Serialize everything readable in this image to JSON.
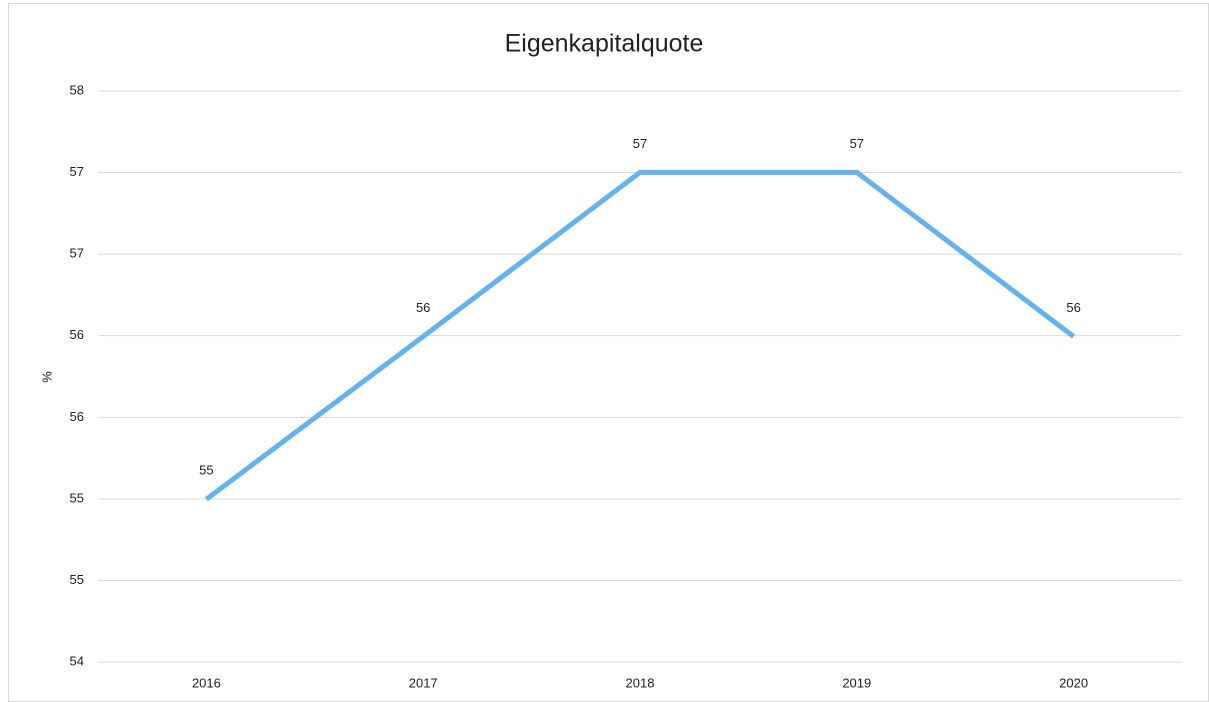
{
  "chart_data": {
    "type": "line",
    "title": "Eigenkapitalquote",
    "y_label": "%",
    "categories": [
      "2016",
      "2017",
      "2018",
      "2019",
      "2020"
    ],
    "series": [
      {
        "name": "Eigenkapitalquote",
        "color": "#64b2ee",
        "values": [
          55.14,
          56.28,
          57.43,
          57.43,
          56.28
        ],
        "value_labels": [
          "55",
          "56",
          "57",
          "57",
          "56"
        ]
      }
    ],
    "ylim": [
      54,
      58
    ],
    "yticks": [
      54,
      {
        "value": 54.571,
        "label": "55"
      },
      {
        "value": 55.143,
        "label": "55"
      },
      {
        "value": 55.714,
        "label": "56"
      },
      {
        "value": 56.286,
        "label": "56"
      },
      {
        "value": 56.857,
        "label": "57"
      },
      {
        "value": 57.429,
        "label": "57"
      },
      58
    ],
    "grid": true
  }
}
